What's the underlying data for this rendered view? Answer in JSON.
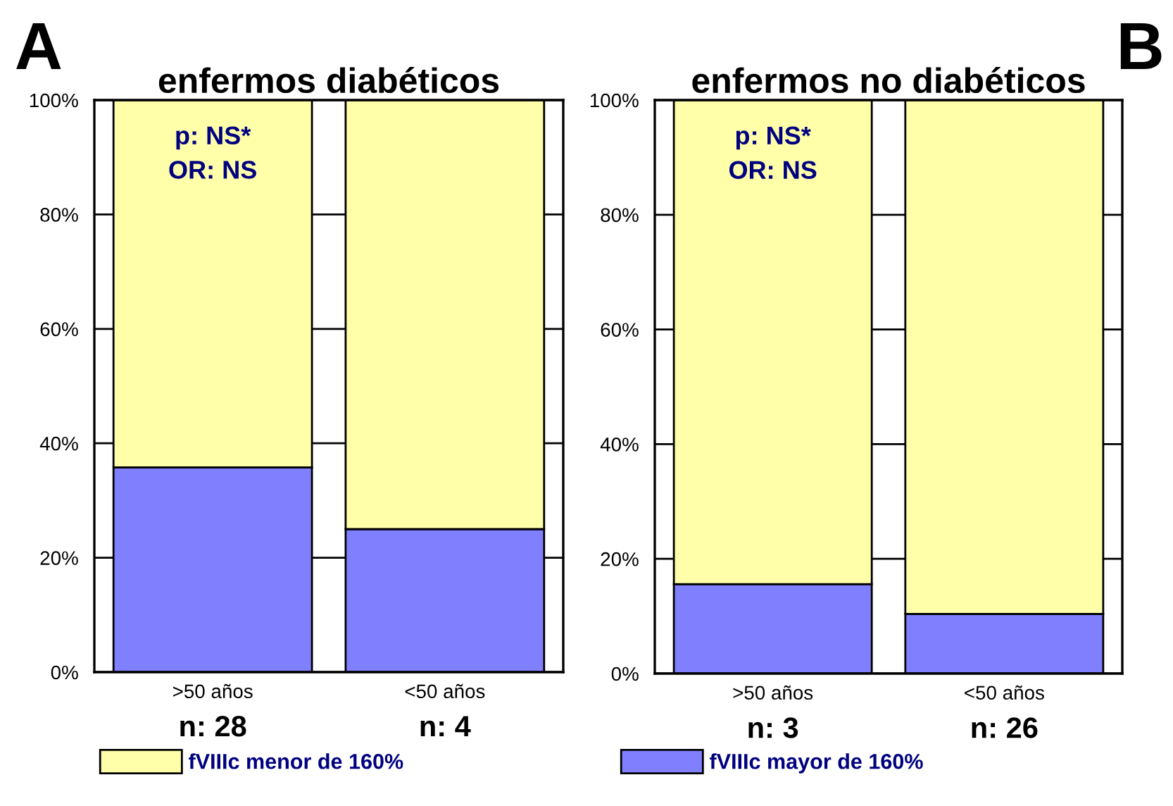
{
  "chart_data": [
    {
      "type": "bar",
      "title": "enfermos diabéticos",
      "stacked": true,
      "categories": [
        ">50 años",
        "<50 años"
      ],
      "series": [
        {
          "name": "fVIIIc mayor de 160%",
          "color": "#8080ff",
          "values": [
            35.8,
            25
          ]
        },
        {
          "name": "fVIIIc menor de 160%",
          "color": "#ffffaa",
          "values": [
            64.2,
            75
          ]
        }
      ],
      "ylim": [
        0,
        100
      ],
      "yticks": [
        {
          "value": 0,
          "label": "0%"
        },
        {
          "value": 20,
          "label": "20%"
        },
        {
          "value": 40,
          "label": "40%"
        },
        {
          "value": 60,
          "label": "60%"
        },
        {
          "value": 80,
          "label": "80%"
        },
        {
          "value": 100,
          "label": "100%"
        }
      ],
      "grid": "y",
      "legend": "bottom",
      "annotations": [
        "A",
        "p: NS*",
        "OR: NS",
        "n: 28",
        "n: 4"
      ]
    },
    {
      "type": "bar",
      "title": "enfermos no diabéticos",
      "stacked": true,
      "categories": [
        ">50 años",
        "<50 años"
      ],
      "series": [
        {
          "name": "fVIIIc mayor de 160%",
          "color": "#8080ff",
          "values": [
            15.6,
            10.4
          ]
        },
        {
          "name": "fVIIIc menor de 160%",
          "color": "#ffffaa",
          "values": [
            84.4,
            89.6
          ]
        }
      ],
      "ylim": [
        0,
        100
      ],
      "yticks": [
        {
          "value": 0,
          "label": "0%"
        },
        {
          "value": 20,
          "label": "20%"
        },
        {
          "value": 40,
          "label": "40%"
        },
        {
          "value": 60,
          "label": "60%"
        },
        {
          "value": 80,
          "label": "80%"
        },
        {
          "value": 100,
          "label": "100%"
        }
      ],
      "grid": "y",
      "legend": "bottom",
      "annotations": [
        "B",
        "p: NS*",
        "OR: NS",
        "n: 3",
        "n: 26"
      ]
    }
  ]
}
